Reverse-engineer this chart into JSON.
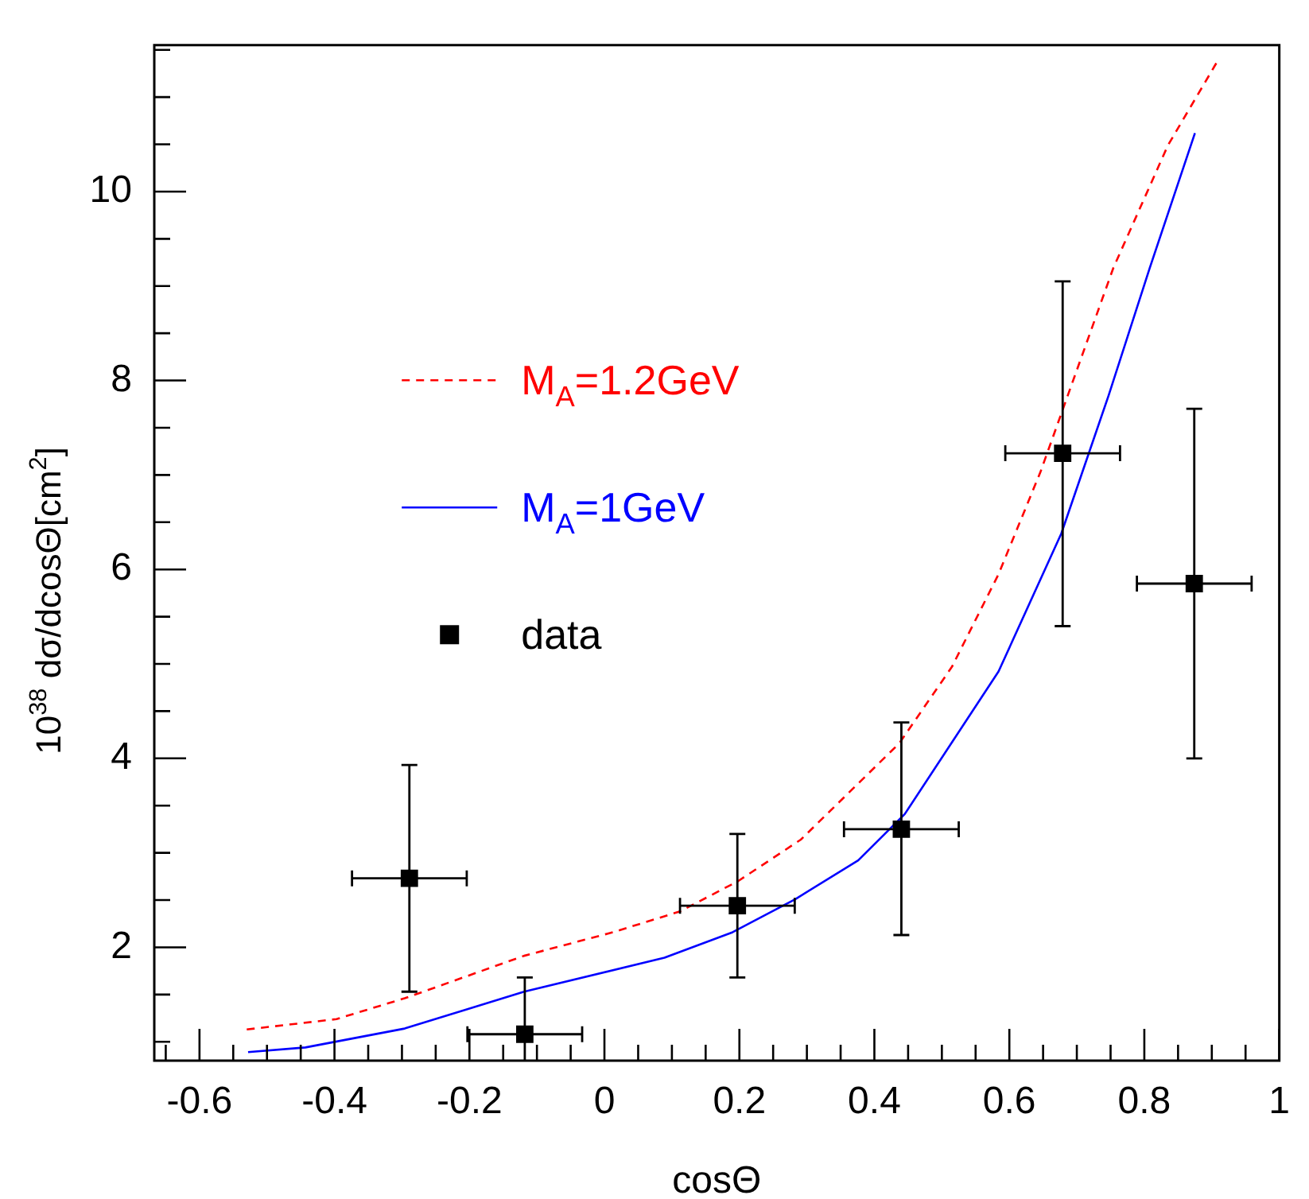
{
  "chart_data": {
    "type": "line",
    "xlabel": "cosΘ",
    "ylabel": "10$^{38}$ dσ/dcosΘ[cm$^{2}$]",
    "xlim": [
      -0.667,
      1.0
    ],
    "ylim": [
      0.8,
      11.55
    ],
    "xticks": [
      {
        "value": -0.65,
        "label": null
      },
      -0.6,
      {
        "value": -0.55,
        "label": null
      },
      {
        "value": -0.5,
        "label": null
      },
      {
        "value": -0.45,
        "label": null
      },
      -0.4,
      {
        "value": -0.35,
        "label": null
      },
      {
        "value": -0.3,
        "label": null
      },
      {
        "value": -0.25,
        "label": null
      },
      -0.2,
      {
        "value": -0.15,
        "label": null
      },
      {
        "value": -0.1,
        "label": null
      },
      {
        "value": -0.05,
        "label": null
      },
      0,
      {
        "value": 0.05,
        "label": null
      },
      {
        "value": 0.1,
        "label": null
      },
      {
        "value": 0.15,
        "label": null
      },
      0.2,
      {
        "value": 0.25,
        "label": null
      },
      {
        "value": 0.3,
        "label": null
      },
      {
        "value": 0.35,
        "label": null
      },
      0.4,
      {
        "value": 0.45,
        "label": null
      },
      {
        "value": 0.5,
        "label": null
      },
      {
        "value": 0.55,
        "label": null
      },
      0.6,
      {
        "value": 0.65,
        "label": null
      },
      {
        "value": 0.7,
        "label": null
      },
      {
        "value": 0.75,
        "label": null
      },
      0.8,
      {
        "value": 0.85,
        "label": null
      },
      {
        "value": 0.9,
        "label": null
      },
      {
        "value": 0.95,
        "label": null
      },
      1
    ],
    "yticks": [
      {
        "value": 1,
        "label": null
      },
      {
        "value": 1.5,
        "label": null
      },
      2,
      {
        "value": 2.5,
        "label": null
      },
      {
        "value": 3,
        "label": null
      },
      {
        "value": 3.5,
        "label": null
      },
      4,
      {
        "value": 4.5,
        "label": null
      },
      {
        "value": 5,
        "label": null
      },
      {
        "value": 5.5,
        "label": null
      },
      6,
      {
        "value": 6.5,
        "label": null
      },
      {
        "value": 7,
        "label": null
      },
      {
        "value": 7.5,
        "label": null
      },
      8,
      {
        "value": 8.5,
        "label": null
      },
      {
        "value": 9,
        "label": null
      },
      {
        "value": 9.5,
        "label": null
      },
      10,
      {
        "value": 10.5,
        "label": null
      },
      {
        "value": 11,
        "label": null
      },
      {
        "value": 11.5,
        "label": null
      }
    ],
    "grid": false,
    "legend": "left",
    "series": [
      {
        "name": "M$_{A}$=1.2GeV",
        "type": "line",
        "color": "#ff0000",
        "line_style": "dashed",
        "marker": "none",
        "x": [
          -0.53,
          -0.397,
          -0.296,
          -0.119,
          0.013,
          0.112,
          0.198,
          0.291,
          0.437,
          0.515,
          0.584,
          0.646,
          0.7,
          0.754,
          0.835,
          0.91
        ],
        "values": [
          1.13,
          1.24,
          1.46,
          1.91,
          2.16,
          2.38,
          2.7,
          3.14,
          4.16,
          4.97,
          5.95,
          7.03,
          8.11,
          9.19,
          10.49,
          11.4
        ]
      },
      {
        "name": "M$_{A}$=1GeV",
        "type": "line",
        "color": "#0000ff",
        "line_style": "solid",
        "marker": "none",
        "x": [
          -0.528,
          -0.443,
          -0.296,
          -0.119,
          0.089,
          0.19,
          0.283,
          0.376,
          0.445,
          0.584,
          0.677,
          0.747,
          0.808,
          0.875
        ],
        "values": [
          0.89,
          0.94,
          1.14,
          1.53,
          1.89,
          2.16,
          2.51,
          2.92,
          3.41,
          4.92,
          6.38,
          7.84,
          9.19,
          10.62
        ]
      },
      {
        "name": "data",
        "type": "scatter",
        "color": "#000000",
        "marker": "square",
        "x": [
          -0.289,
          -0.118,
          0.197,
          0.44,
          0.679,
          0.874
        ],
        "values": [
          2.73,
          1.08,
          2.44,
          3.25,
          7.23,
          5.85
        ],
        "errors": [
          [
            1.53,
            3.93
          ],
          [
            0.8,
            1.68
          ],
          [
            1.68,
            3.2
          ],
          [
            2.13,
            4.38
          ],
          [
            5.4,
            9.05
          ],
          [
            4.0,
            7.7
          ]
        ],
        "xerrors": [
          0.085,
          0.085,
          0.085,
          0.085,
          0.085,
          0.085
        ]
      }
    ]
  }
}
